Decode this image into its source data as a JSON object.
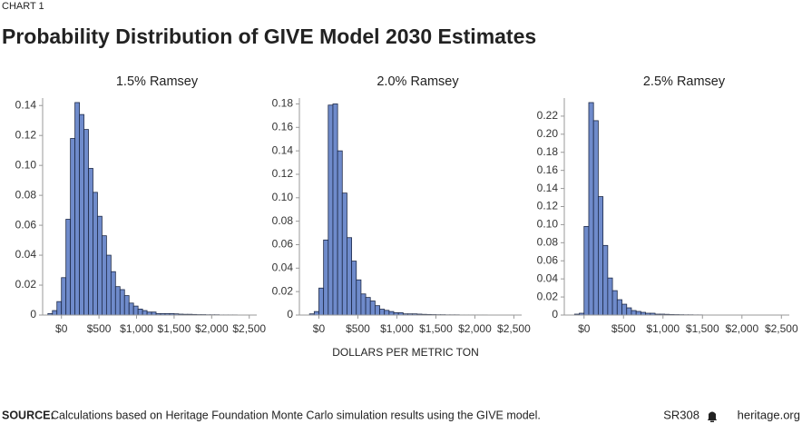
{
  "header": {
    "kicker": "CHART 1",
    "title": "Probability Distribution of GIVE Model 2030 Estimates"
  },
  "x_axis_label": "DOLLARS PER METRIC TON",
  "footer": {
    "source_label": "SOURCE:",
    "source_text": "Calculations based on Heritage Foundation Monte Carlo simulation results using the GIVE model.",
    "report": "SR308",
    "site": "heritage.org"
  },
  "chart_data": [
    {
      "type": "histogram",
      "title": "1.5% Ramsey",
      "color": "#6f8bcb",
      "bins": [
        -180,
        -120,
        -60,
        0,
        60,
        120,
        180,
        240,
        300,
        360,
        420,
        480,
        540,
        600,
        660,
        720,
        780,
        840,
        900,
        960,
        1020,
        1080,
        1140,
        1200,
        1260,
        1320,
        1380,
        1440,
        1500,
        1560,
        1620,
        1680,
        1740,
        1800,
        1860,
        1920,
        1980,
        2040,
        2100,
        2160,
        2220,
        2280,
        2340
      ],
      "values": [
        0.001,
        0.003,
        0.009,
        0.025,
        0.064,
        0.118,
        0.142,
        0.134,
        0.124,
        0.098,
        0.082,
        0.066,
        0.053,
        0.04,
        0.029,
        0.019,
        0.017,
        0.013,
        0.008,
        0.006,
        0.004,
        0.003,
        0.002,
        0.002,
        0.001,
        0.001,
        0.001,
        0.001,
        0.0008,
        0.0006,
        0.0005,
        0.0005,
        0.0004,
        0.0003,
        0.0003,
        0.0002,
        0.0002,
        0.0002,
        0.0001,
        0.0001,
        0.0001,
        0.0001
      ],
      "xlim": [
        -250,
        2600
      ],
      "ylim": [
        0,
        0.145
      ],
      "xticks": [
        {
          "value": 0,
          "label": "$0"
        },
        {
          "value": 500,
          "label": "$500"
        },
        {
          "value": 1000,
          "label": "$1,000"
        },
        {
          "value": 1500,
          "label": "$1,500"
        },
        {
          "value": 2000,
          "label": "$2,000"
        },
        {
          "value": 2500,
          "label": "$2,500"
        }
      ],
      "yticks": [
        0,
        0.02,
        0.04,
        0.06,
        0.08,
        {
          "value": 0.1,
          "label": "0.10"
        },
        0.12,
        0.14
      ]
    },
    {
      "type": "histogram",
      "title": "2.0% Ramsey",
      "color": "#6f8bcb",
      "bins": [
        -120,
        -60,
        0,
        60,
        120,
        180,
        240,
        300,
        360,
        420,
        480,
        540,
        600,
        660,
        720,
        780,
        840,
        900,
        960,
        1020,
        1080,
        1140,
        1200,
        1260,
        1320,
        1380,
        1440,
        1500,
        1560,
        1620,
        1680,
        1740,
        1800,
        1860,
        1920,
        1980,
        2040,
        2100,
        2160
      ],
      "values": [
        0.001,
        0.003,
        0.023,
        0.064,
        0.179,
        0.18,
        0.14,
        0.104,
        0.066,
        0.046,
        0.03,
        0.018,
        0.015,
        0.012,
        0.008,
        0.005,
        0.004,
        0.003,
        0.002,
        0.002,
        0.001,
        0.001,
        0.001,
        0.0008,
        0.0006,
        0.0005,
        0.0004,
        0.0003,
        0.0003,
        0.0002,
        0.0002,
        0.0002,
        0.0001,
        0.0001,
        0.0001,
        0.0001,
        0.0001,
        0.0001
      ],
      "xlim": [
        -250,
        2600
      ],
      "ylim": [
        0,
        0.185
      ],
      "xticks": [
        {
          "value": 0,
          "label": "$0"
        },
        {
          "value": 500,
          "label": "$500"
        },
        {
          "value": 1000,
          "label": "$1,000"
        },
        {
          "value": 1500,
          "label": "$1,500"
        },
        {
          "value": 2000,
          "label": "$2,000"
        },
        {
          "value": 2500,
          "label": "$2,500"
        }
      ],
      "yticks": [
        0,
        0.02,
        0.04,
        0.06,
        0.08,
        {
          "value": 0.1,
          "label": "0.10"
        },
        0.12,
        0.14,
        0.16,
        0.18
      ]
    },
    {
      "type": "histogram",
      "title": "2.5% Ramsey",
      "color": "#6f8bcb",
      "bins": [
        -120,
        -60,
        0,
        60,
        120,
        180,
        240,
        300,
        360,
        420,
        480,
        540,
        600,
        660,
        720,
        780,
        840,
        900,
        960,
        1020,
        1080,
        1140,
        1200,
        1260,
        1320,
        1380,
        1440,
        1500,
        1560,
        1620,
        1680,
        1740,
        1800
      ],
      "values": [
        0.001,
        0.002,
        0.098,
        0.235,
        0.215,
        0.131,
        0.077,
        0.041,
        0.027,
        0.017,
        0.012,
        0.008,
        0.005,
        0.004,
        0.003,
        0.002,
        0.002,
        0.001,
        0.001,
        0.0008,
        0.0006,
        0.0005,
        0.0004,
        0.0003,
        0.0003,
        0.0002,
        0.0002,
        0.0001,
        0.0001,
        0.0001,
        0.0001,
        0.0001
      ],
      "xlim": [
        -250,
        2600
      ],
      "ylim": [
        0,
        0.24
      ],
      "xticks": [
        {
          "value": 0,
          "label": "$0"
        },
        {
          "value": 500,
          "label": "$500"
        },
        {
          "value": 1000,
          "label": "$1,000"
        },
        {
          "value": 1500,
          "label": "$1,500"
        },
        {
          "value": 2000,
          "label": "$2,000"
        },
        {
          "value": 2500,
          "label": "$2,500"
        }
      ],
      "yticks": [
        0,
        0.02,
        0.04,
        0.06,
        0.08,
        {
          "value": 0.1,
          "label": "0.10"
        },
        0.12,
        0.14,
        0.16,
        0.18,
        {
          "value": 0.2,
          "label": "0.20"
        },
        0.22
      ]
    }
  ]
}
